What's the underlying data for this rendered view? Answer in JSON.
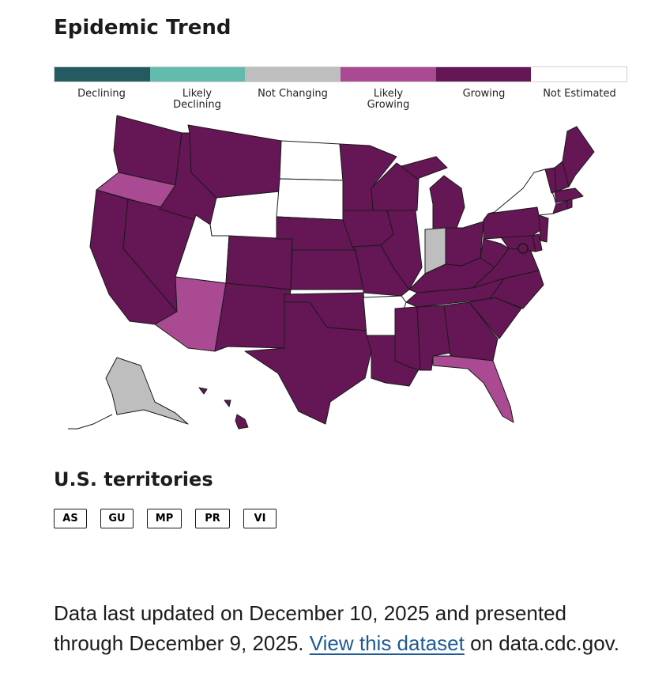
{
  "title": "Epidemic Trend",
  "legend": {
    "items": [
      {
        "label": "Declining",
        "color": "#245b63"
      },
      {
        "label": "Likely\nDeclining",
        "color": "#63bbac"
      },
      {
        "label": "Not Changing",
        "color": "#bebebe"
      },
      {
        "label": "Likely\nGrowing",
        "color": "#a94a92"
      },
      {
        "label": "Growing",
        "color": "#651655"
      },
      {
        "label": "Not Estimated",
        "color": "#ffffff"
      }
    ]
  },
  "territories": {
    "heading": "U.S. territories",
    "buttons": [
      "AS",
      "GU",
      "MP",
      "PR",
      "VI"
    ]
  },
  "footnote": {
    "text_before": "Data last updated on December 10, 2025 and presented through December 9, 2025. ",
    "link_text": "View this dataset",
    "text_after": " on data.cdc.gov."
  }
}
